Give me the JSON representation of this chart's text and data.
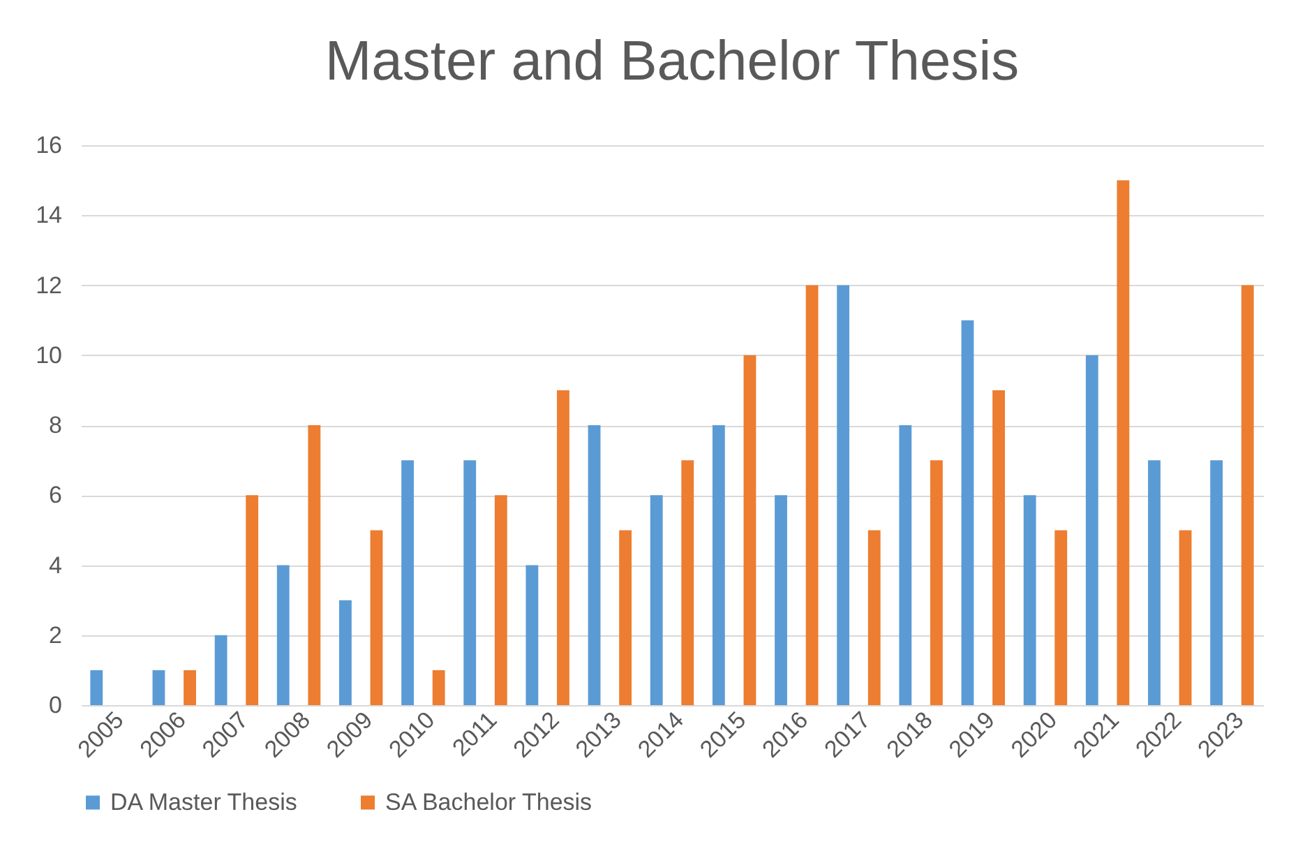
{
  "chart_data": {
    "type": "bar",
    "title": "Master and Bachelor Thesis",
    "categories": [
      "2005",
      "2006",
      "2007",
      "2008",
      "2009",
      "2010",
      "2011",
      "2012",
      "2013",
      "2014",
      "2015",
      "2016",
      "2017",
      "2018",
      "2019",
      "2020",
      "2021",
      "2022",
      "2023"
    ],
    "series": [
      {
        "name": "DA Master Thesis",
        "color": "#5b9bd5",
        "values": [
          1,
          1,
          2,
          4,
          3,
          7,
          7,
          4,
          8,
          6,
          8,
          6,
          12,
          8,
          11,
          6,
          10,
          7,
          7
        ]
      },
      {
        "name": "SA Bachelor Thesis",
        "color": "#ed7d31",
        "values": [
          0,
          1,
          6,
          8,
          5,
          1,
          6,
          9,
          5,
          7,
          10,
          12,
          5,
          7,
          9,
          5,
          15,
          5,
          12
        ]
      }
    ],
    "ylim": [
      0,
      16
    ],
    "yticks": [
      0,
      2,
      4,
      6,
      8,
      10,
      12,
      14,
      16
    ],
    "grid": "y",
    "legend": "bottom"
  }
}
